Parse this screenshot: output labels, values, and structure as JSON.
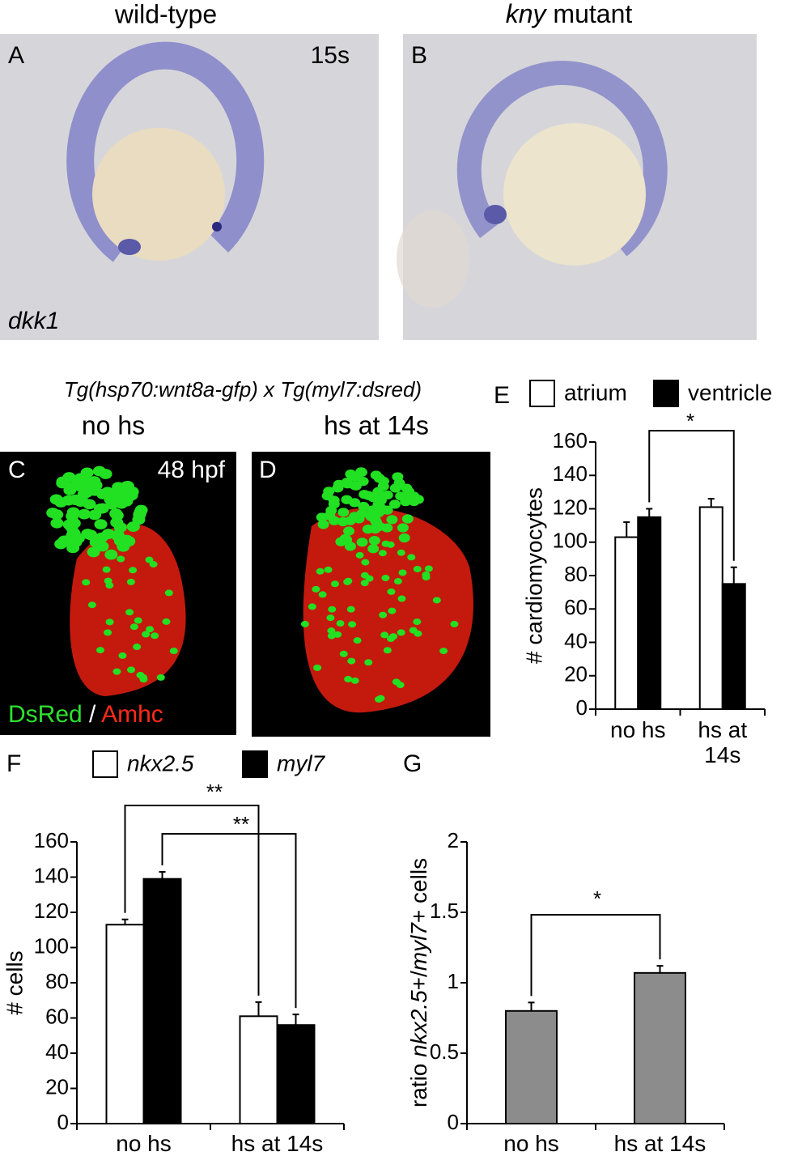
{
  "panels": {
    "A": {
      "letter": "A",
      "title": "wild-type",
      "stage": "15s",
      "gene": "dkk1"
    },
    "B": {
      "letter": "B",
      "title_gene": "kny",
      "title_rest": "mutant"
    },
    "cross": "Tg(hsp70:wnt8a-gfp) x Tg(myl7:dsred)",
    "C": {
      "letter": "C",
      "title": "no hs",
      "stage": "48 hpf",
      "stain1": "DsRed",
      "separator": "/",
      "stain2": "Amhc"
    },
    "D": {
      "letter": "D",
      "title": "hs at 14s"
    }
  },
  "chart_data": [
    {
      "type": "bar",
      "panel": "E",
      "ylabel": "# cardiomyocytes",
      "categories": [
        "no hs",
        "hs at 14s"
      ],
      "series": [
        {
          "name": "atrium",
          "color": "#ffffff",
          "values": [
            103,
            121
          ],
          "errors": [
            9,
            5
          ]
        },
        {
          "name": "ventricle",
          "color": "#000000",
          "values": [
            115,
            75
          ],
          "errors": [
            5,
            10
          ]
        }
      ],
      "ylim": [
        0,
        160
      ],
      "yticks": [
        0,
        20,
        40,
        60,
        80,
        100,
        120,
        140,
        160
      ],
      "annotations": [
        "*"
      ]
    },
    {
      "type": "bar",
      "panel": "F",
      "ylabel": "# cells",
      "categories": [
        "no hs",
        "hs at 14s"
      ],
      "series": [
        {
          "name": "nkx2.5",
          "color": "#ffffff",
          "values": [
            113,
            61
          ],
          "errors": [
            3,
            8
          ]
        },
        {
          "name": "myl7",
          "color": "#000000",
          "values": [
            139,
            56
          ],
          "errors": [
            4,
            6
          ]
        }
      ],
      "ylim": [
        0,
        160
      ],
      "yticks": [
        0,
        20,
        40,
        60,
        80,
        100,
        120,
        140,
        160
      ],
      "annotations": [
        "**",
        "**"
      ]
    },
    {
      "type": "bar",
      "panel": "G",
      "ylabel_parts": [
        "ratio ",
        "nkx2.5",
        "+/",
        "myl7",
        "+ cells"
      ],
      "categories": [
        "no hs",
        "hs at 14s"
      ],
      "color": "#8c8c8c",
      "values": [
        0.8,
        1.07
      ],
      "errors": [
        0.06,
        0.05
      ],
      "ylim": [
        0,
        2
      ],
      "yticks": [
        0,
        0.5,
        1,
        1.5,
        2
      ],
      "annotations": [
        "*"
      ]
    }
  ]
}
